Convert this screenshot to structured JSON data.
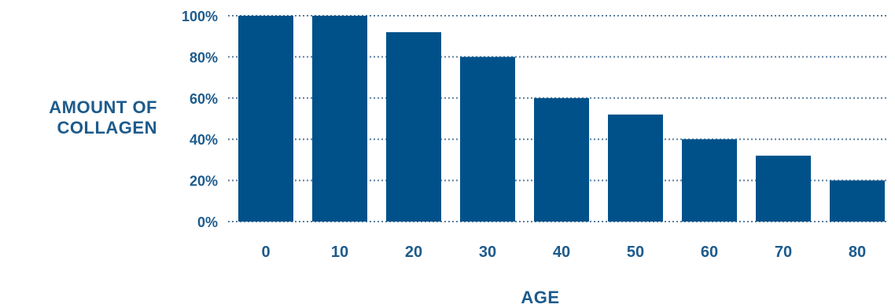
{
  "chart_data": {
    "type": "bar",
    "categories": [
      "0",
      "10",
      "20",
      "30",
      "40",
      "50",
      "60",
      "70",
      "80"
    ],
    "values": [
      100,
      100,
      92,
      80,
      60,
      52,
      40,
      32,
      20
    ],
    "ylim": [
      0,
      100
    ],
    "yticks": [
      "0%",
      "20%",
      "40%",
      "60%",
      "80%",
      "100%"
    ],
    "ytick_values": [
      0,
      20,
      40,
      60,
      80,
      100
    ],
    "xlabel": "AGE",
    "ylabel_lines": [
      "AMOUNT OF",
      "COLLAGEN"
    ],
    "grid": "dotted horizontal",
    "colors": {
      "bar": "#00518a",
      "text": "#1d5b8c",
      "grid": "#5c7f9e"
    }
  }
}
